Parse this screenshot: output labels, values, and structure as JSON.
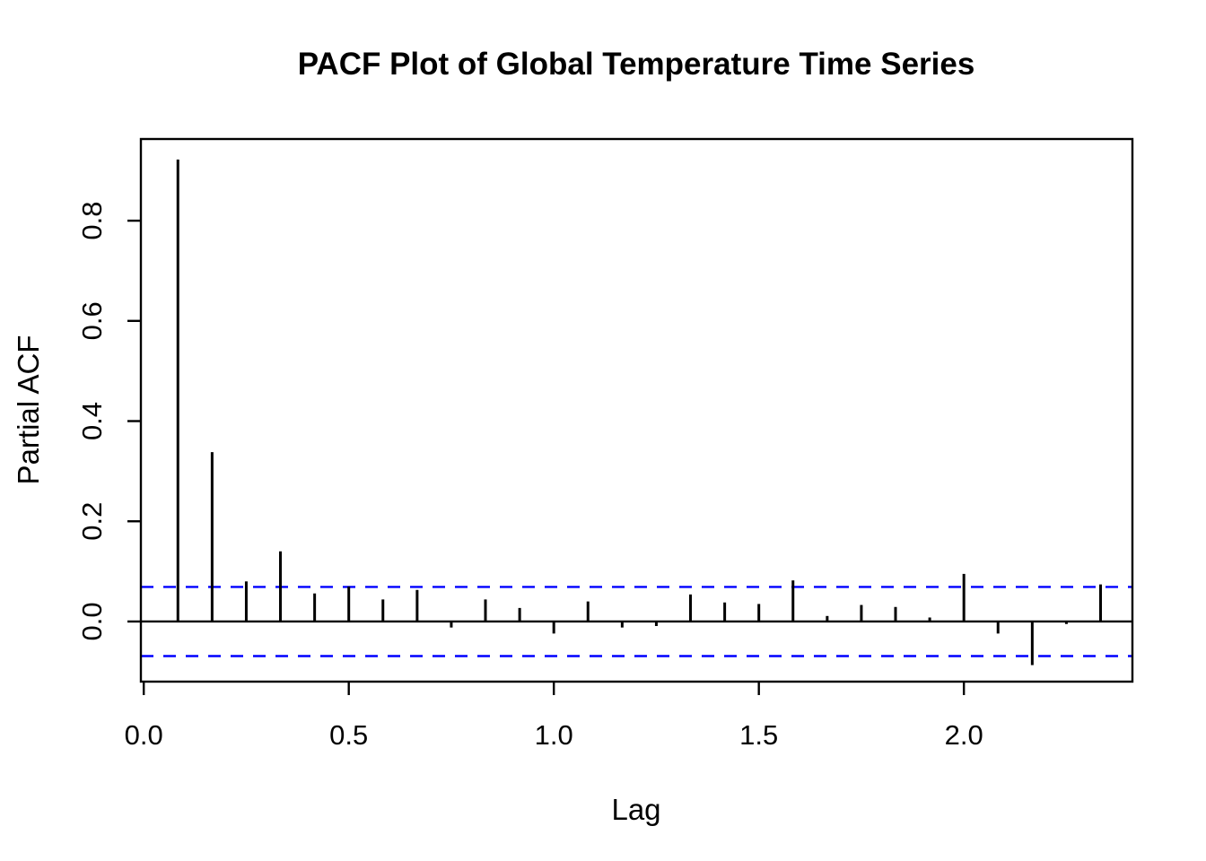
{
  "page": {
    "background_color": "#ffffff"
  },
  "chart_data": {
    "type": "bar",
    "title": "PACF Plot of Global Temperature Time Series",
    "xlabel": "Lag",
    "ylabel": "Partial ACF",
    "grid": false,
    "legend": "none",
    "xlim": [
      -0.007,
      2.411
    ],
    "ylim": [
      -0.12,
      0.963
    ],
    "x_ticks": [
      {
        "value": 0.0,
        "label": "0.0"
      },
      {
        "value": 0.5,
        "label": "0.5"
      },
      {
        "value": 1.0,
        "label": "1.0"
      },
      {
        "value": 1.5,
        "label": "1.5"
      },
      {
        "value": 2.0,
        "label": "2.0"
      }
    ],
    "y_ticks": [
      {
        "value": 0.0,
        "label": "0.0"
      },
      {
        "value": 0.2,
        "label": "0.2"
      },
      {
        "value": 0.4,
        "label": "0.4"
      },
      {
        "value": 0.6,
        "label": "0.6"
      },
      {
        "value": 0.8,
        "label": "0.8"
      }
    ],
    "zero_line": 0,
    "confidence_bounds": {
      "upper": 0.069,
      "lower": -0.069,
      "line_style": "dashed",
      "color": "#0000ff"
    },
    "bar_color": "#000000",
    "axis_color": "#000000",
    "series": [
      {
        "name": "Partial ACF",
        "x": [
          0.0833,
          0.1667,
          0.25,
          0.3333,
          0.4167,
          0.5,
          0.5833,
          0.6667,
          0.75,
          0.8333,
          0.9167,
          1.0,
          1.0833,
          1.1667,
          1.25,
          1.3333,
          1.4167,
          1.5,
          1.5833,
          1.6667,
          1.75,
          1.8333,
          1.9167,
          2.0,
          2.0833,
          2.1667,
          2.25,
          2.3333
        ],
        "values": [
          0.922,
          0.338,
          0.08,
          0.14,
          0.056,
          0.07,
          0.044,
          0.063,
          -0.012,
          0.044,
          0.027,
          -0.024,
          0.04,
          -0.012,
          -0.009,
          0.054,
          0.038,
          0.035,
          0.082,
          0.011,
          0.033,
          0.029,
          0.008,
          0.095,
          -0.024,
          -0.087,
          -0.005,
          0.074
        ]
      }
    ]
  }
}
